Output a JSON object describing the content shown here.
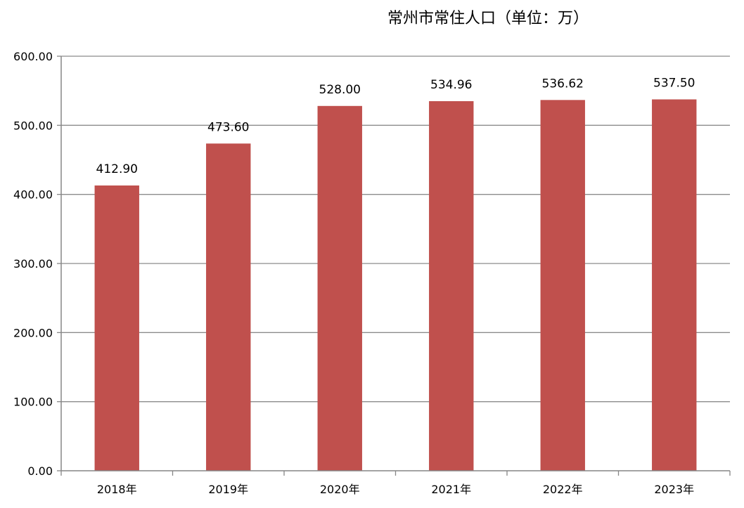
{
  "chart_data": {
    "type": "bar",
    "title": "常州市常住人口（单位：万）",
    "categories": [
      "2018年",
      "2019年",
      "2020年",
      "2021年",
      "2022年",
      "2023年"
    ],
    "values": [
      412.9,
      473.6,
      528.0,
      534.96,
      536.62,
      537.5
    ],
    "value_labels": [
      "412.90",
      "473.60",
      "528.00",
      "534.96",
      "536.62",
      "537.50"
    ],
    "ylim": [
      0,
      600
    ],
    "yticks": [
      "0.00",
      "100.00",
      "200.00",
      "300.00",
      "400.00",
      "500.00",
      "600.00"
    ],
    "grid": true,
    "bar_color": "#C0504D",
    "grid_color": "#8C8C8C",
    "axis_color": "#868686"
  }
}
